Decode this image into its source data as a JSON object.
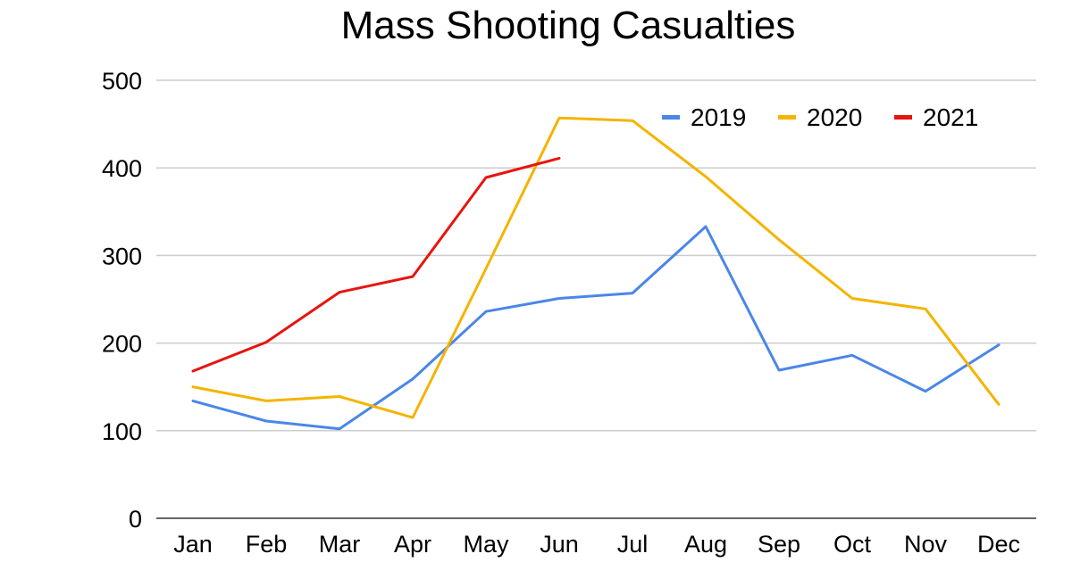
{
  "chart_data": {
    "type": "line",
    "title": "Mass Shooting Casualties",
    "xlabel": "",
    "ylabel": "",
    "categories": [
      "Jan",
      "Feb",
      "Mar",
      "Apr",
      "May",
      "Jun",
      "Jul",
      "Aug",
      "Sep",
      "Oct",
      "Nov",
      "Dec"
    ],
    "ylim": [
      0,
      500
    ],
    "yticks": [
      0,
      100,
      200,
      300,
      400,
      500
    ],
    "grid": true,
    "legend_position": "top-right",
    "series": [
      {
        "name": "2019",
        "color": "#4a86e8",
        "values": [
          134,
          111,
          102,
          159,
          236,
          251,
          257,
          333,
          169,
          186,
          145,
          198
        ]
      },
      {
        "name": "2020",
        "color": "#f4b400",
        "values": [
          150,
          134,
          139,
          115,
          285,
          457,
          454,
          390,
          318,
          251,
          239,
          130
        ]
      },
      {
        "name": "2021",
        "color": "#e8140f",
        "values": [
          168,
          201,
          258,
          276,
          389,
          411,
          null,
          null,
          null,
          null,
          null,
          null
        ]
      }
    ]
  }
}
